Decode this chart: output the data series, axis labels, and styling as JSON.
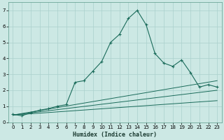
{
  "xlabel": "Humidex (Indice chaleur)",
  "bg_color": "#cce8e4",
  "grid_color": "#aad0cc",
  "line_color": "#1a6b5a",
  "xlim": [
    -0.5,
    23.5
  ],
  "ylim": [
    0,
    7.5
  ],
  "x_ticks": [
    0,
    1,
    2,
    3,
    4,
    5,
    6,
    7,
    8,
    9,
    10,
    11,
    12,
    13,
    14,
    15,
    16,
    17,
    18,
    19,
    20,
    21,
    22,
    23
  ],
  "y_ticks": [
    0,
    1,
    2,
    3,
    4,
    5,
    6,
    7
  ],
  "main_x": [
    0,
    1,
    2,
    3,
    4,
    5,
    6,
    7,
    8,
    9,
    10,
    11,
    12,
    13,
    14,
    15,
    16,
    17,
    18,
    19,
    20,
    21,
    22,
    23
  ],
  "main_y": [
    0.5,
    0.4,
    0.6,
    0.75,
    0.85,
    1.0,
    1.1,
    2.5,
    2.6,
    3.2,
    3.8,
    5.0,
    5.5,
    6.5,
    7.0,
    6.1,
    4.3,
    3.7,
    3.5,
    3.9,
    3.1,
    2.2,
    2.35,
    2.2
  ],
  "trend1_x": [
    0,
    23
  ],
  "trend1_y": [
    0.45,
    2.0
  ],
  "trend2_x": [
    0,
    23
  ],
  "trend2_y": [
    0.45,
    2.6
  ],
  "trend3_x": [
    0,
    23
  ],
  "trend3_y": [
    0.45,
    1.35
  ]
}
